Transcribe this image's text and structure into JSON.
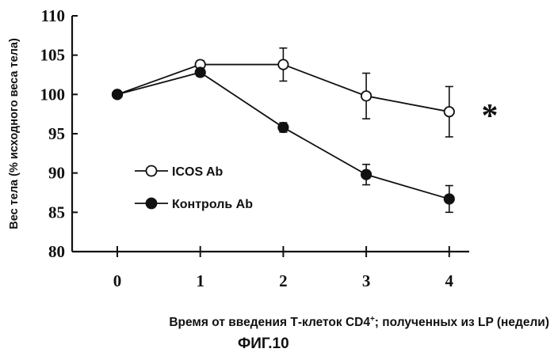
{
  "chart_data": {
    "type": "line",
    "x": [
      0,
      1,
      2,
      3,
      4
    ],
    "xticks": [
      "0",
      "1",
      "2",
      "3",
      "4"
    ],
    "yticks": [
      "80",
      "85",
      "90",
      "95",
      "100",
      "105",
      "110"
    ],
    "ylim": [
      80,
      110
    ],
    "xlim": [
      -0.55,
      4.2
    ],
    "ylabel": "Вес тела (% исходного веса тела)",
    "xlabel_main": "Время от введения Т-клеток CD4",
    "xlabel_sup": "+",
    "xlabel_rest": "; полученных из LP (недели)",
    "figure_label": "ФИГ.10",
    "significance_mark": "*",
    "legend_placement": "center-left",
    "grid": false,
    "series": [
      {
        "name": "ICOS Ab",
        "marker": "open-circle",
        "values": [
          100,
          103.8,
          103.8,
          99.8,
          97.8
        ],
        "errors": [
          0,
          0.5,
          2.1,
          2.9,
          3.2
        ]
      },
      {
        "name": "Контроль Ab",
        "marker": "filled-circle",
        "values": [
          100,
          102.8,
          95.8,
          89.8,
          86.7
        ],
        "errors": [
          0,
          0.5,
          0.6,
          1.3,
          1.7
        ]
      }
    ]
  }
}
